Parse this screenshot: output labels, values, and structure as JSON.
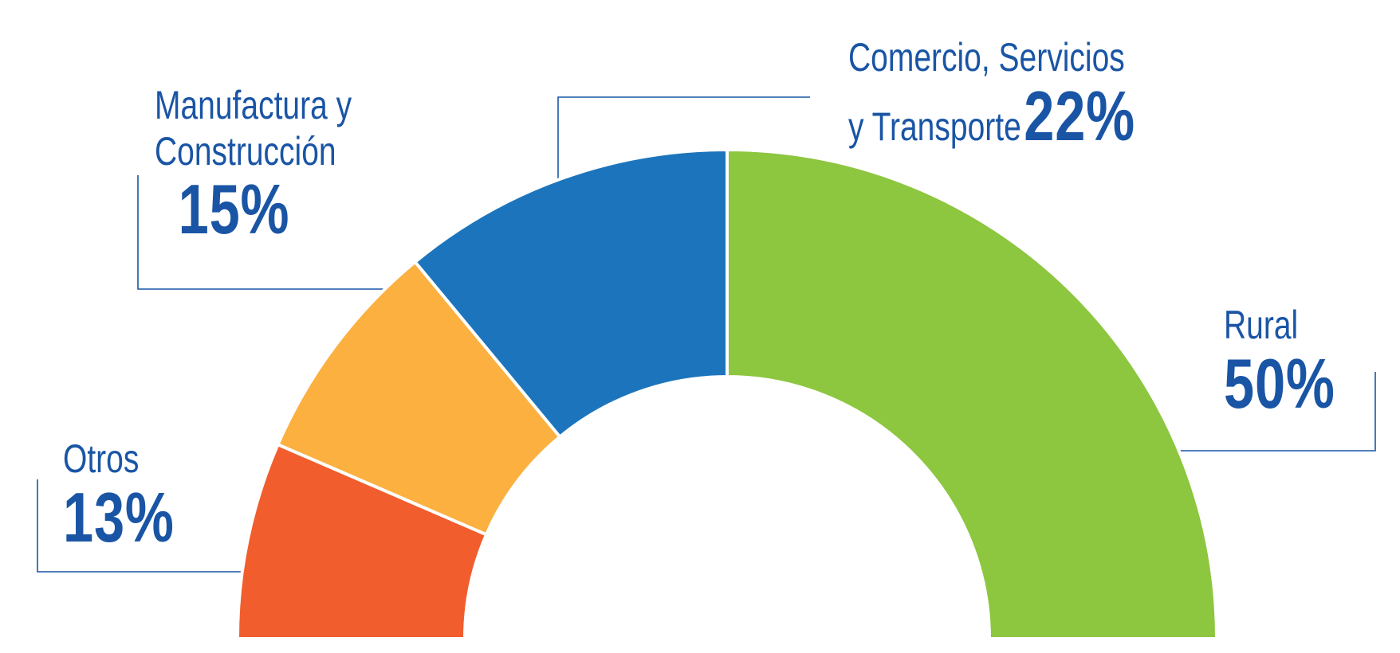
{
  "chart_data": {
    "type": "donut",
    "categories": [
      "Otros",
      "Manufactura y Construcción",
      "Comercio, Servicios y Transporte",
      "Rural"
    ],
    "values": [
      13,
      15,
      22,
      50
    ],
    "value_labels": [
      "13%",
      "15%",
      "22%",
      "50%"
    ],
    "colors": [
      "#f15d2d",
      "#fbb040",
      "#1c75bc",
      "#8dc63f"
    ]
  }
}
